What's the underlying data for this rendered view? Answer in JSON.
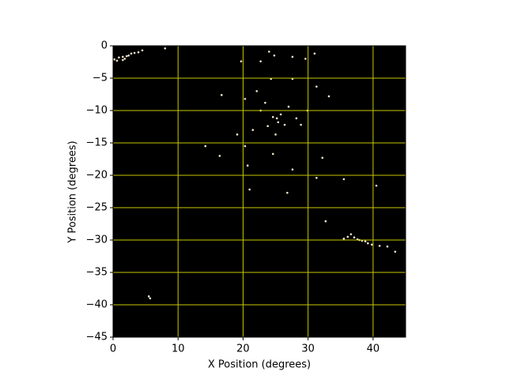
{
  "chart_data": {
    "type": "scatter",
    "xlabel": "X Position (degrees)",
    "ylabel": "Y Position (degrees)",
    "x": [
      0.2,
      0.9,
      1.5,
      1.8,
      2.1,
      2.4,
      2.8,
      3.3,
      3.9,
      4.5,
      1.5,
      0.6,
      8.0,
      19.7,
      22.7,
      24,
      24.8,
      27.6,
      29.6,
      31.0,
      24.3,
      27.6,
      22.1,
      20.3,
      16.7,
      33.2,
      31.3,
      25.2,
      25.4,
      24.6,
      25.8,
      23.8,
      26.4,
      22.7,
      27,
      21.5,
      28.2,
      29.9,
      28.9,
      23.4,
      25,
      19.1,
      20.3,
      24.6,
      20.7,
      27.6,
      31.3,
      35.5,
      40.5,
      26.8,
      21,
      16.4,
      14.2,
      32.2,
      32.7,
      35.5,
      36.1,
      37.1,
      37.6,
      37.9,
      38.3,
      38.8,
      39.2,
      39.8,
      41,
      42.2,
      43.4,
      36.6,
      5.7,
      5.5
    ],
    "y": [
      -2.1,
      -1.8,
      -1.7,
      -2.0,
      -1.6,
      -1.5,
      -1.2,
      -1.1,
      -1.0,
      -0.7,
      -2.2,
      -2.3,
      -0.4,
      -2.4,
      -2.4,
      -0.9,
      -1.5,
      -1.7,
      -2.0,
      -1.2,
      -5.1,
      -5.1,
      -7.0,
      -8.2,
      -7.6,
      -7.8,
      -6.3,
      -11.2,
      -11.8,
      -11.0,
      -10.6,
      -12.4,
      -12.2,
      -10,
      -9.4,
      -13,
      -11.2,
      -10,
      -12.2,
      -8.8,
      -13.7,
      -13.7,
      -15.5,
      -16.7,
      -18.5,
      -19.1,
      -20.4,
      -20.6,
      -21.6,
      -22.7,
      -22.2,
      -17,
      -15.5,
      -17.3,
      -27.1,
      -29.8,
      -29.5,
      -29.6,
      -29.9,
      -30.0,
      -30.1,
      -30.2,
      -30.5,
      -30.7,
      -30.9,
      -31,
      -31.8,
      -29.1,
      -39.0,
      -38.7
    ],
    "color": "#f2e6cc",
    "background": "#000000",
    "grid": true,
    "grid_color": "#c8c800",
    "xlim": [
      0,
      45
    ],
    "ylim": [
      -45,
      0
    ],
    "xticks": [
      0,
      10,
      20,
      30,
      40
    ],
    "yticks": [
      0,
      {
        "value": -5,
        "label": "−5"
      },
      {
        "value": -10,
        "label": "−10"
      },
      {
        "value": -15,
        "label": "−15"
      },
      {
        "value": -20,
        "label": "−20"
      },
      {
        "value": -25,
        "label": "−25"
      },
      {
        "value": -30,
        "label": "−30"
      },
      {
        "value": -35,
        "label": "−35"
      },
      {
        "value": -40,
        "label": "−40"
      },
      {
        "value": -45,
        "label": "−45"
      }
    ]
  }
}
